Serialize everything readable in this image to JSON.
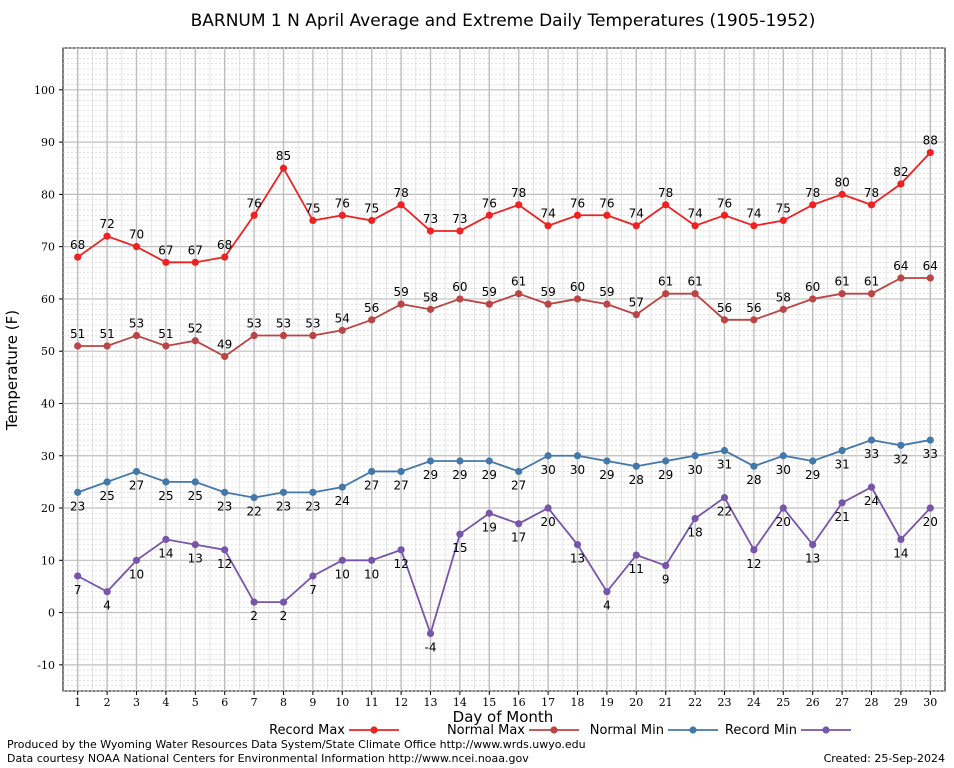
{
  "chart_data": {
    "type": "line",
    "title": "BARNUM 1 N April Average and Extreme Daily Temperatures (1905-1952)",
    "xlabel": "Day of Month",
    "ylabel": "Temperature (F)",
    "x": [
      1,
      2,
      3,
      4,
      5,
      6,
      7,
      8,
      9,
      10,
      11,
      12,
      13,
      14,
      15,
      16,
      17,
      18,
      19,
      20,
      21,
      22,
      23,
      24,
      25,
      26,
      27,
      28,
      29,
      30
    ],
    "xlim": [
      0.5,
      30.5
    ],
    "ylim": [
      -15,
      108
    ],
    "yticks": [
      -10,
      0,
      10,
      20,
      30,
      40,
      50,
      60,
      70,
      80,
      90,
      100
    ],
    "grid": true,
    "legend_placement": "bottom",
    "series": [
      {
        "name": "Record Max",
        "color": "#ee2222",
        "label_pos": "above",
        "values": [
          68,
          72,
          70,
          67,
          67,
          68,
          76,
          85,
          75,
          76,
          75,
          78,
          73,
          73,
          76,
          78,
          74,
          76,
          76,
          74,
          78,
          74,
          76,
          74,
          75,
          78,
          80,
          78,
          82,
          88
        ]
      },
      {
        "name": "Normal Max",
        "color": "#bb4444",
        "label_pos": "above",
        "values": [
          51,
          51,
          53,
          51,
          52,
          49,
          53,
          53,
          53,
          54,
          56,
          59,
          58,
          60,
          59,
          61,
          59,
          60,
          59,
          57,
          61,
          61,
          56,
          56,
          58,
          60,
          61,
          61,
          64,
          64
        ]
      },
      {
        "name": "Normal Min",
        "color": "#4477aa",
        "label_pos": "below",
        "values": [
          23,
          25,
          27,
          25,
          25,
          23,
          22,
          23,
          23,
          24,
          27,
          27,
          29,
          29,
          29,
          27,
          30,
          30,
          29,
          28,
          29,
          30,
          31,
          28,
          30,
          29,
          31,
          33,
          32,
          33
        ]
      },
      {
        "name": "Record Min",
        "color": "#7755aa",
        "label_pos": "below",
        "values": [
          7,
          4,
          10,
          14,
          13,
          12,
          2,
          2,
          7,
          10,
          10,
          12,
          -4,
          15,
          19,
          17,
          20,
          13,
          4,
          11,
          9,
          18,
          22,
          12,
          20,
          13,
          21,
          24,
          14,
          20
        ]
      }
    ]
  },
  "footer": {
    "line1": "Produced by the Wyoming Water Resources Data System/State Climate Office http://www.wrds.uwyo.edu",
    "line2": "Data courtesy NOAA National Centers for Environmental Information http://www.ncei.noaa.gov",
    "created": "Created:  25-Sep-2024"
  }
}
